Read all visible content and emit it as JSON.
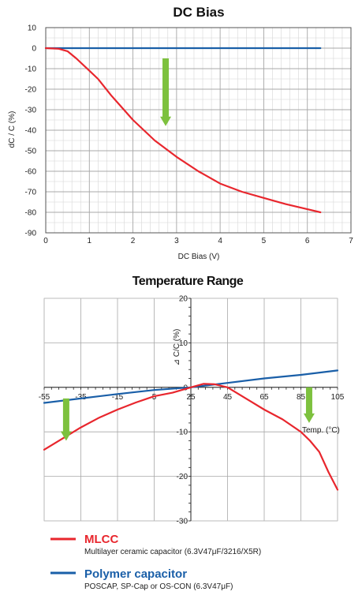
{
  "colors": {
    "mlcc": "#e8262d",
    "polymer": "#1a5fa8",
    "arrow": "#7dc13e",
    "grid_major": "#a8a8a8",
    "grid_minor": "#d6d6d6"
  },
  "chart_data": [
    {
      "type": "line",
      "title": "DC Bias",
      "xlabel": "DC Bias (V)",
      "ylabel": "dC / C (%)",
      "xlim": [
        0,
        7
      ],
      "ylim": [
        -90,
        10
      ],
      "x_ticks": [
        "0",
        "1",
        "2",
        "3",
        "4",
        "5",
        "6",
        "7"
      ],
      "y_ticks": [
        "10",
        "0",
        "-10",
        "-20",
        "-30",
        "-40",
        "-50",
        "-60",
        "-70",
        "-80",
        "-90"
      ],
      "grid": true,
      "series": [
        {
          "key": "polymer",
          "points": [
            [
              0,
              0
            ],
            [
              6.3,
              0
            ]
          ]
        },
        {
          "key": "mlcc",
          "points": [
            [
              0,
              0
            ],
            [
              0.3,
              -0.3
            ],
            [
              0.5,
              -1.5
            ],
            [
              0.7,
              -5
            ],
            [
              1.0,
              -11
            ],
            [
              1.2,
              -15
            ],
            [
              1.5,
              -23
            ],
            [
              2.0,
              -35
            ],
            [
              2.5,
              -45
            ],
            [
              3.0,
              -53
            ],
            [
              3.5,
              -60
            ],
            [
              4.0,
              -66
            ],
            [
              4.5,
              -70
            ],
            [
              5.0,
              -73
            ],
            [
              5.5,
              -76
            ],
            [
              6.0,
              -78.5
            ],
            [
              6.3,
              -80
            ]
          ]
        }
      ],
      "annotations": [
        {
          "type": "arrow-down",
          "x": 2.75,
          "y_from": -5,
          "y_to": -38
        }
      ]
    },
    {
      "type": "line",
      "title": "Temperature Range",
      "xlabel": "Temp. (°C)",
      "ylabel": "⊿ C/C (%)",
      "xlim": [
        -55,
        105
      ],
      "ylim": [
        -30,
        20
      ],
      "x_ticks": [
        "-55",
        "-35",
        "-15",
        "5",
        "25",
        "45",
        "65",
        "85",
        "105"
      ],
      "y_ticks": [
        "20",
        "10",
        "0",
        "-10",
        "-20",
        "-30"
      ],
      "grid": true,
      "series": [
        {
          "key": "polymer",
          "points": [
            [
              -55,
              -3.5
            ],
            [
              -35,
              -2.5
            ],
            [
              -15,
              -1.5
            ],
            [
              5,
              -0.6
            ],
            [
              25,
              0
            ],
            [
              45,
              1.0
            ],
            [
              65,
              2.0
            ],
            [
              85,
              2.8
            ],
            [
              105,
              3.8
            ]
          ]
        },
        {
          "key": "mlcc",
          "points": [
            [
              -55,
              -14
            ],
            [
              -45,
              -11.5
            ],
            [
              -35,
              -9
            ],
            [
              -25,
              -6.8
            ],
            [
              -15,
              -5
            ],
            [
              -5,
              -3.4
            ],
            [
              5,
              -2
            ],
            [
              15,
              -1.2
            ],
            [
              25,
              0
            ],
            [
              32,
              0.8
            ],
            [
              38,
              0.7
            ],
            [
              45,
              0
            ],
            [
              55,
              -2.5
            ],
            [
              65,
              -5
            ],
            [
              75,
              -7.2
            ],
            [
              85,
              -10
            ],
            [
              90,
              -12
            ],
            [
              95,
              -14.5
            ],
            [
              100,
              -19
            ],
            [
              105,
              -23
            ]
          ]
        }
      ],
      "annotations": [
        {
          "type": "arrow-down",
          "x": -43,
          "y_from": -2.5,
          "y_to": -12
        },
        {
          "type": "arrow-down",
          "x": 89.5,
          "y_from": 0,
          "y_to": -8
        }
      ]
    }
  ],
  "legend": [
    {
      "key": "mlcc",
      "title": "MLCC",
      "subtitle": "Multilayer ceramic capacitor (6.3V47μF/3216/X5R)"
    },
    {
      "key": "polymer",
      "title": "Polymer capacitor",
      "subtitle": "POSCAP, SP-Cap or OS-CON (6.3V47μF)"
    }
  ]
}
